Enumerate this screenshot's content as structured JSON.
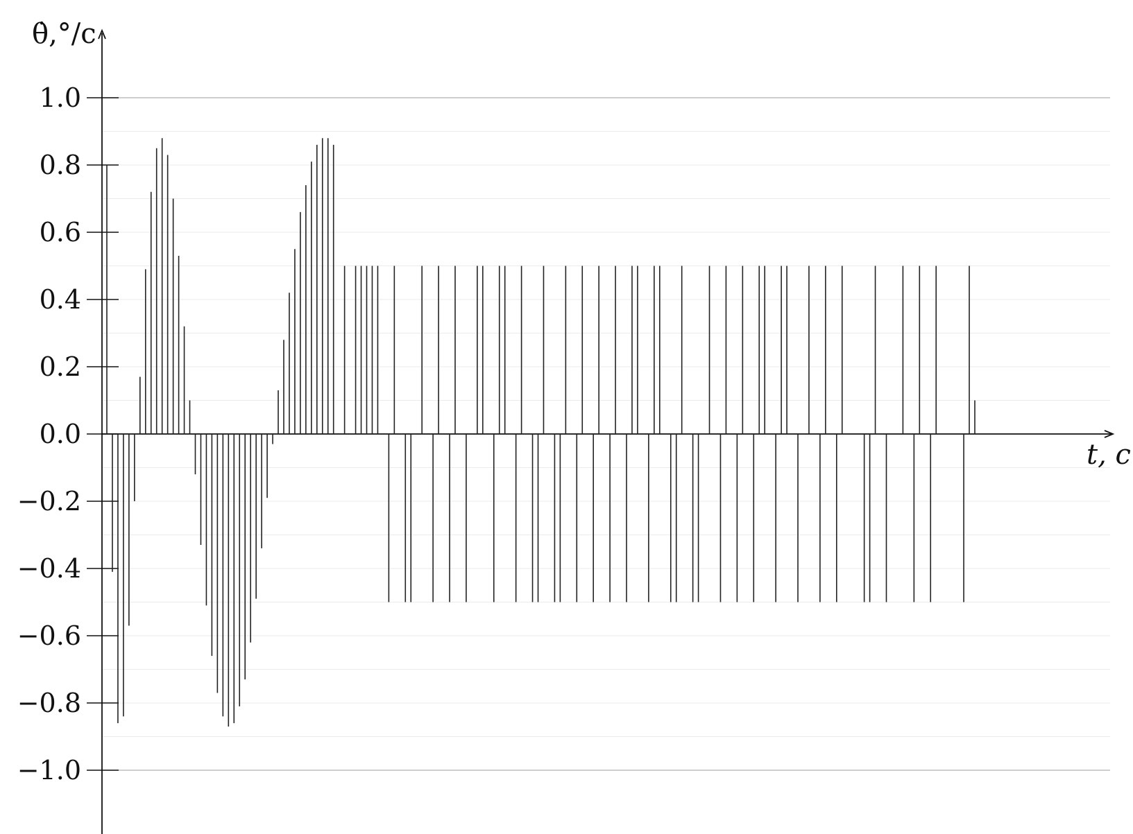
{
  "chart_data": {
    "type": "stem",
    "title": "",
    "xlabel": "t, c",
    "ylabel": "θ̇,°/c",
    "ylim": [
      -1.1,
      1.1
    ],
    "yticks": [
      -1.0,
      -0.8,
      -0.6,
      -0.4,
      -0.2,
      0.0,
      0.2,
      0.4,
      0.6,
      0.8,
      1.0
    ],
    "ytick_labels": [
      "−1.0",
      "−0.8",
      "−0.6",
      "−0.4",
      "−0.2",
      "0.0",
      "0.2",
      "0.4",
      "0.6",
      "0.8",
      "1.0"
    ],
    "grid": {
      "major": true,
      "minor": true
    },
    "series": [
      {
        "values": [
          0.8,
          -0.41,
          -0.86,
          -0.84,
          -0.57,
          -0.2,
          0.17,
          0.49,
          0.72,
          0.85,
          0.88,
          0.83,
          0.7,
          0.53,
          0.32,
          0.1,
          -0.12,
          -0.33,
          -0.51,
          -0.66,
          -0.77,
          -0.84,
          -0.87,
          -0.86,
          -0.81,
          -0.73,
          -0.62,
          -0.49,
          -0.34,
          -0.19,
          -0.03,
          0.13,
          0.28,
          0.42,
          0.55,
          0.66,
          0.74,
          0.81,
          0.86,
          0.88,
          0.88,
          0.86,
          0.0,
          0.5,
          0.0,
          0.5,
          0.5,
          0.5,
          0.5,
          0.5,
          0.0,
          -0.5,
          0.5,
          0.0,
          -0.5,
          -0.5,
          0.0,
          0.5,
          0.0,
          -0.5,
          0.5,
          0.0,
          -0.5,
          0.5,
          0.0,
          -0.5,
          0.0,
          0.5,
          0.5,
          0.0,
          -0.5,
          0.5,
          0.5,
          0.0,
          -0.5,
          0.5,
          0.0,
          -0.5,
          -0.5,
          0.5,
          0.0,
          -0.5,
          -0.5,
          0.5,
          0.0,
          -0.5,
          0.5,
          0.0,
          -0.5,
          0.5,
          0.0,
          -0.5,
          0.5,
          0.0,
          -0.5,
          0.5,
          0.5,
          0.0,
          -0.5,
          0.5,
          0.5,
          0.0,
          -0.5,
          -0.5,
          0.5,
          0.0,
          -0.5,
          -0.5,
          0.0,
          0.5,
          0.0,
          -0.5,
          0.5,
          0.0,
          -0.5,
          0.5,
          0.0,
          -0.5,
          0.5,
          0.5,
          0.0,
          -0.5,
          0.5,
          0.5,
          0.0,
          -0.5,
          0.0,
          0.5,
          0.0,
          -0.5,
          0.5,
          0.0,
          -0.5,
          0.5,
          0.0,
          0.0,
          0.0,
          -0.5,
          -0.5,
          0.5,
          0.0,
          -0.5,
          0.0,
          0.0,
          0.5,
          0.0,
          -0.5,
          0.5,
          0.0,
          -0.5,
          0.5,
          0.0,
          0.0,
          0.0,
          0.0,
          -0.5,
          0.5,
          0.1
        ]
      }
    ]
  }
}
